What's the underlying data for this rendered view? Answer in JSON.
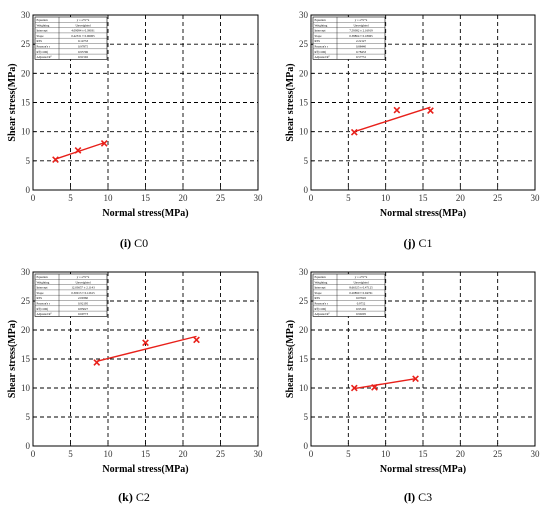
{
  "chart_data": [
    {
      "type": "scatter",
      "caption": {
        "letter": "(i)",
        "name": "C0"
      },
      "xlabel": "Normal stress(MPa)",
      "ylabel": "Shear stress(MPa)",
      "xlim": [
        0,
        30
      ],
      "ylim": [
        0,
        30
      ],
      "xticks": [
        "0",
        "5",
        "10",
        "15",
        "20",
        "25",
        "30"
      ],
      "yticks": [
        "0",
        "5",
        "10",
        "15",
        "20",
        "25",
        "30"
      ],
      "grid": true,
      "colors": {
        "points": "#e8201a",
        "fit": "#e8201a",
        "grid": "#000000"
      },
      "points": [
        {
          "x": 3.0,
          "y": 5.2
        },
        {
          "x": 6.0,
          "y": 6.8
        },
        {
          "x": 9.5,
          "y": 8.0
        }
      ],
      "fit_line": {
        "x": [
          3.0,
          9.5
        ],
        "y": [
          5.3,
          8.1
        ]
      },
      "stats_table": [
        [
          "Equation",
          "y = a+b*x"
        ],
        [
          "Weighting",
          "Unweighted"
        ],
        [
          "Intercept",
          "4.09094 ± 0.39031"
        ],
        [
          "Slope",
          "0.42531 ± 0.06005"
        ],
        [
          "RSS",
          "0.14733"
        ],
        [
          "Pearson's r",
          "0.97875"
        ],
        [
          "R²(COD)",
          "0.95796"
        ],
        [
          "Adjusted R²",
          "0.91592"
        ]
      ]
    },
    {
      "type": "scatter",
      "caption": {
        "letter": "(j)",
        "name": "C1"
      },
      "xlabel": "Normal stress(MPa)",
      "ylabel": "Shear stress(MPa)",
      "xlim": [
        0,
        30
      ],
      "ylim": [
        0,
        30
      ],
      "xticks": [
        "0",
        "5",
        "10",
        "15",
        "20",
        "25",
        "30"
      ],
      "yticks": [
        "0",
        "5",
        "10",
        "15",
        "20",
        "25",
        "30"
      ],
      "grid": true,
      "colors": {
        "points": "#e8201a",
        "fit": "#e8201a",
        "grid": "#000000"
      },
      "points": [
        {
          "x": 5.8,
          "y": 9.9
        },
        {
          "x": 11.5,
          "y": 13.7
        },
        {
          "x": 16.0,
          "y": 13.6
        }
      ],
      "fit_line": {
        "x": [
          5.8,
          16.0
        ],
        "y": [
          10.0,
          14.2
        ]
      },
      "stats_table": [
        [
          "Equation",
          "y = a+b*x"
        ],
        [
          "Weighting",
          "Unweighted"
        ],
        [
          "Intercept",
          "7.59382 ± 2.16919"
        ],
        [
          "Slope",
          "0.38864 ± 0.18965"
        ],
        [
          "RSS",
          "2.22127"
        ],
        [
          "Pearson's r",
          "0.88440"
        ],
        [
          "R²(COD)",
          "0.78433"
        ],
        [
          "Adjusted R²",
          "0.57731"
        ]
      ]
    },
    {
      "type": "scatter",
      "caption": {
        "letter": "(k)",
        "name": "C2"
      },
      "xlabel": "Normal stress(MPa)",
      "ylabel": "Shear stress(MPa)",
      "xlim": [
        0,
        30
      ],
      "ylim": [
        0,
        30
      ],
      "xticks": [
        "0",
        "5",
        "10",
        "15",
        "20",
        "25",
        "30"
      ],
      "yticks": [
        "0",
        "5",
        "10",
        "15",
        "20",
        "25",
        "30"
      ],
      "grid": true,
      "colors": {
        "points": "#e8201a",
        "fit": "#e8201a",
        "grid": "#000000"
      },
      "points": [
        {
          "x": 8.5,
          "y": 14.4
        },
        {
          "x": 15.0,
          "y": 17.8
        },
        {
          "x": 21.8,
          "y": 18.3
        }
      ],
      "fit_line": {
        "x": [
          8.5,
          21.8
        ],
        "y": [
          14.6,
          18.9
        ]
      },
      "stats_table": [
        [
          "Equation",
          "y = a+b*x"
        ],
        [
          "Weighting",
          "Unweighted"
        ],
        [
          "Intercept",
          "12.03657 ± 2.1143"
        ],
        [
          "Slope",
          "0.30013 ± 0.12615"
        ],
        [
          "RSS",
          "2.09360"
        ],
        [
          "Pearson's r",
          "0.92195"
        ],
        [
          "R²(COD)",
          "0.85027"
        ],
        [
          "Adjusted R²",
          "0.69773"
        ]
      ]
    },
    {
      "type": "scatter",
      "caption": {
        "letter": "(l)",
        "name": "C3"
      },
      "xlabel": "Normal stress(MPa)",
      "ylabel": "Shear stress(MPa)",
      "xlim": [
        0,
        30
      ],
      "ylim": [
        0,
        30
      ],
      "xticks": [
        "0",
        "5",
        "10",
        "15",
        "20",
        "25",
        "30"
      ],
      "yticks": [
        "0",
        "5",
        "10",
        "15",
        "20",
        "25",
        "30"
      ],
      "grid": true,
      "colors": {
        "points": "#e8201a",
        "fit": "#e8201a",
        "grid": "#000000"
      },
      "points": [
        {
          "x": 5.8,
          "y": 10.0
        },
        {
          "x": 8.5,
          "y": 10.1
        },
        {
          "x": 14.0,
          "y": 11.6
        }
      ],
      "fit_line": {
        "x": [
          5.8,
          14.0
        ],
        "y": [
          9.9,
          11.6
        ]
      },
      "stats_table": [
        [
          "Equation",
          "y = a+b*x"
        ],
        [
          "Weighting",
          "Unweighted"
        ],
        [
          "Intercept",
          "8.66325 ± 0.47125"
        ],
        [
          "Slope",
          "0.20890 ± 0.04761"
        ],
        [
          "RSS",
          "0.07645"
        ],
        [
          "Pearson's r",
          "0.9752"
        ],
        [
          "R²(COD)",
          "0.95102"
        ],
        [
          "Adjusted R²",
          "0.90205"
        ]
      ]
    }
  ]
}
